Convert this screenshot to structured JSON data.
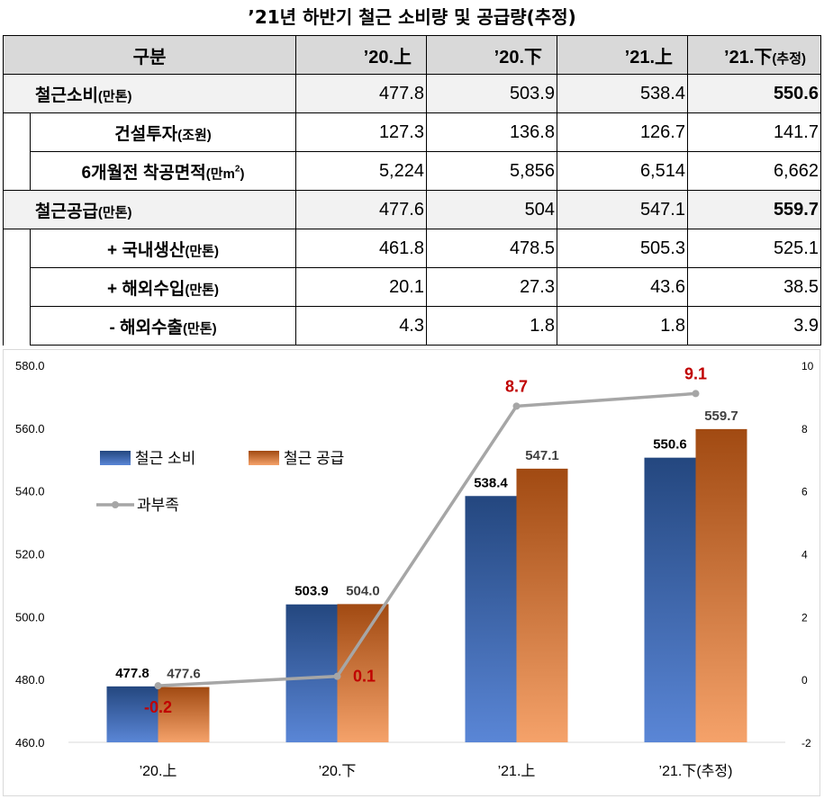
{
  "title": "’21년 하반기 철근 소비량 및 공급량(추정)",
  "table": {
    "header": {
      "label": "구분",
      "columns": [
        "’20.上",
        "’20.下",
        "’21.上",
        "’21.下"
      ],
      "last_col_suffix": "(추정)"
    },
    "rows": [
      {
        "label": "철근소비",
        "unit": "(만톤)",
        "values": [
          "477.8",
          "503.9",
          "538.4",
          "550.6"
        ]
      },
      {
        "label": "건설투자",
        "unit": "(조원)",
        "values": [
          "127.3",
          "136.8",
          "126.7",
          "141.7"
        ]
      },
      {
        "label": "6개월전 착공면적",
        "unit": "(만m",
        "unit_sup": "2",
        "unit_close": ")",
        "values": [
          "5,224",
          "5,856",
          "6,514",
          "6,662"
        ]
      },
      {
        "label": "철근공급",
        "unit": "(만톤)",
        "values": [
          "477.6",
          "504",
          "547.1",
          "559.7"
        ]
      },
      {
        "label": "+ 국내생산",
        "unit": "(만톤)",
        "values": [
          "461.8",
          "478.5",
          "505.3",
          "525.1"
        ]
      },
      {
        "label": "+ 해외수입",
        "unit": "(만톤)",
        "values": [
          "20.1",
          "27.3",
          "43.6",
          "38.5"
        ]
      },
      {
        "label": "- 해외수출",
        "unit": "(만톤)",
        "values": [
          "4.3",
          "1.8",
          "1.8",
          "3.9"
        ]
      }
    ]
  },
  "chart_data": {
    "type": "bar",
    "categories": [
      "’20.上",
      "’20.下",
      "’21.上",
      "’21.下(추정)"
    ],
    "series": [
      {
        "name": "철근 소비",
        "type": "bar",
        "axis": "left",
        "values": [
          477.8,
          503.9,
          538.4,
          550.6
        ],
        "labels": [
          "477.8",
          "503.9",
          "538.4",
          "550.6"
        ],
        "color": "#3b66b0"
      },
      {
        "name": "철근 공급",
        "type": "bar",
        "axis": "left",
        "values": [
          477.6,
          504.0,
          547.1,
          559.7
        ],
        "labels": [
          "477.6",
          "504.0",
          "547.1",
          "559.7"
        ],
        "color": "#d96a22"
      },
      {
        "name": "과부족",
        "type": "line",
        "axis": "right",
        "values": [
          -0.2,
          0.1,
          8.7,
          9.1
        ],
        "labels": [
          "-0.2",
          "0.1",
          "8.7",
          "9.1"
        ],
        "color": "#a6a6a6",
        "label_color": "#c00000"
      }
    ],
    "y_left": {
      "min": 460,
      "max": 580,
      "step": 20,
      "ticks": [
        "460.0",
        "480.0",
        "500.0",
        "520.0",
        "540.0",
        "560.0",
        "580.0"
      ]
    },
    "y_right": {
      "min": -2,
      "max": 10,
      "step": 2,
      "ticks": [
        "-2",
        "0",
        "2",
        "4",
        "6",
        "8",
        "10"
      ]
    },
    "grid": false,
    "legend_position": "top-left"
  }
}
